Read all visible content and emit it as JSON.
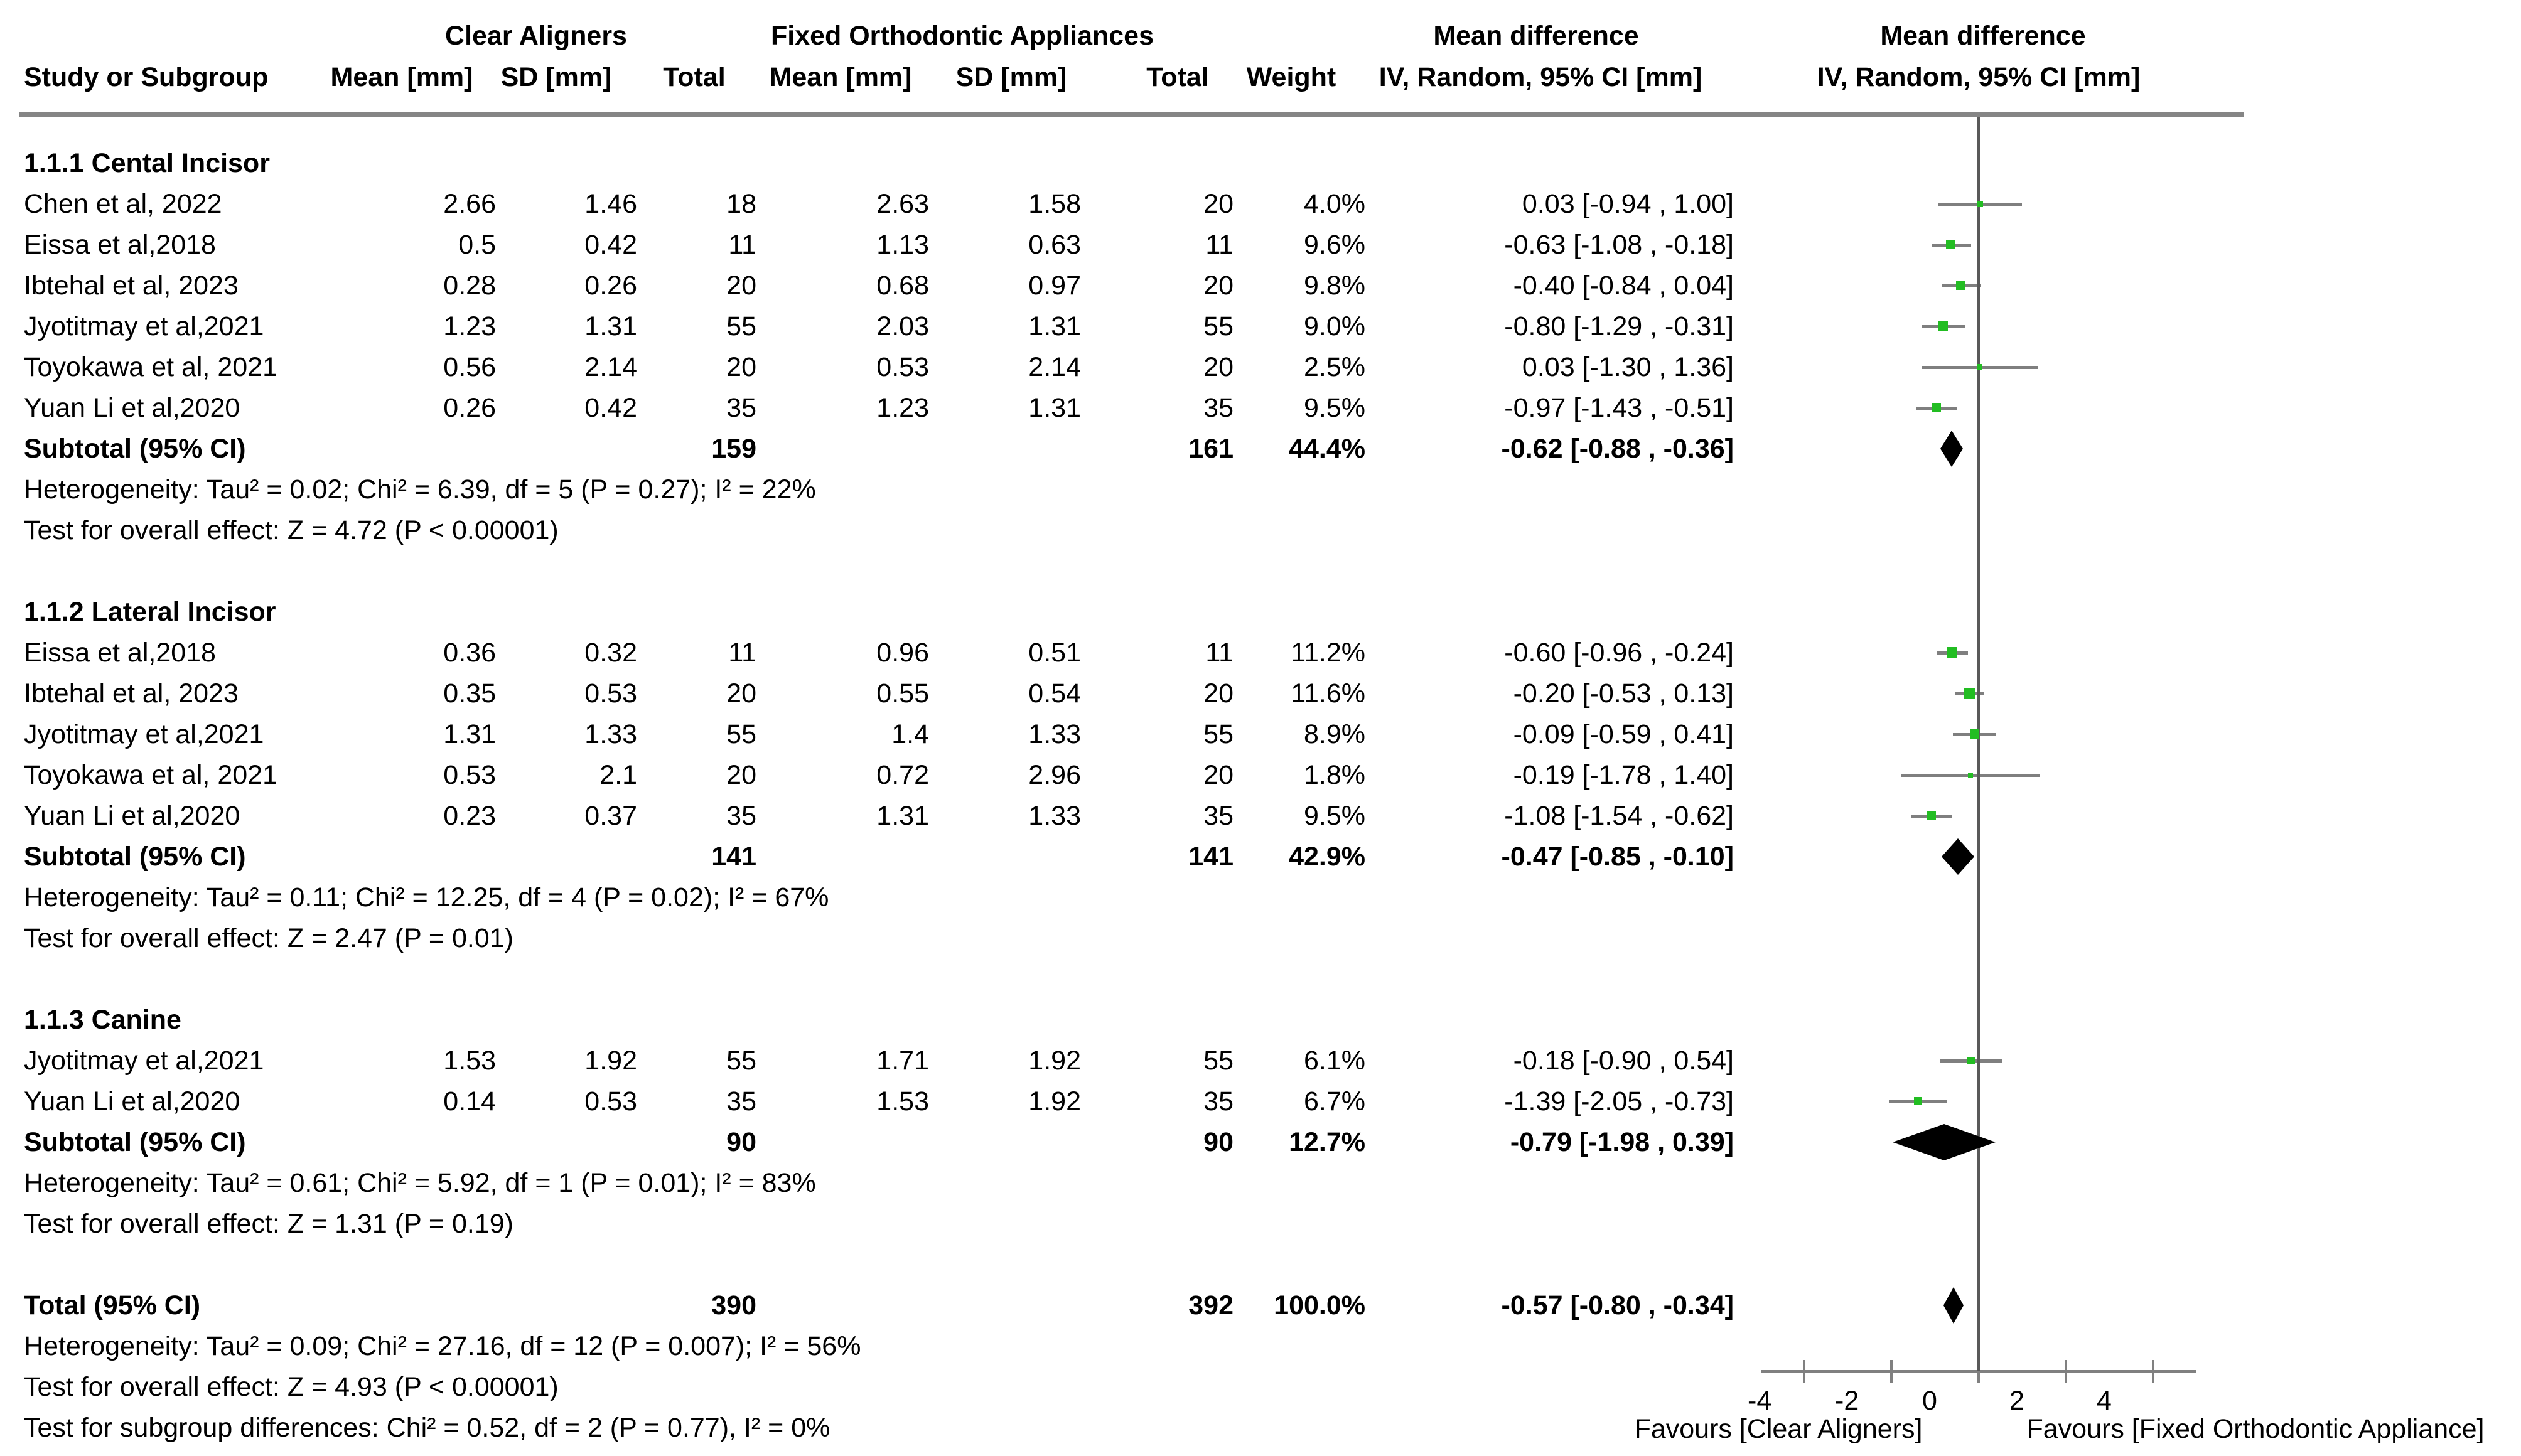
{
  "header": {
    "group1": "Clear Aligners",
    "group2": "Fixed Orthodontic Appliances",
    "col_study": "Study or Subgroup",
    "col_mean": "Mean [mm]",
    "col_sd": "SD [mm]",
    "col_total": "Total",
    "col_weight": "Weight",
    "col_md": "Mean difference",
    "col_ci": "IV, Random, 95% CI [mm]"
  },
  "axis": {
    "ticks": [
      -4,
      -2,
      0,
      2,
      4
    ],
    "range_min": -5,
    "range_max": 5,
    "favours_left": "Favours [Clear Aligners]",
    "favours_right": "Favours [Fixed Orthodontic Appliance]"
  },
  "colors": {
    "marker_green": "#22bd22",
    "ci_line_gray": "#7f7f7f",
    "axis_gray": "#808080",
    "zero_line_gray": "#595959",
    "diamond_black": "#000000"
  },
  "chart_data": {
    "type": "forest",
    "subtype": "meta-analysis mean difference, IV random effects",
    "effect_unit": "mm",
    "sections": [
      {
        "title": "1.1.1 Cental Incisor",
        "studies": [
          {
            "name": "Chen et al, 2022",
            "mean1": "2.66",
            "sd1": "1.46",
            "n1": "18",
            "mean2": "2.63",
            "sd2": "1.58",
            "n2": "20",
            "weight": "4.0%",
            "weight_pct": 4.0,
            "ci_text": "0.03 [-0.94 , 1.00]",
            "est": 0.03,
            "lo": -0.94,
            "hi": 1.0
          },
          {
            "name": "Eissa et al,2018",
            "mean1": "0.5",
            "sd1": "0.42",
            "n1": "11",
            "mean2": "1.13",
            "sd2": "0.63",
            "n2": "11",
            "weight": "9.6%",
            "weight_pct": 9.6,
            "ci_text": "-0.63 [-1.08 , -0.18]",
            "est": -0.63,
            "lo": -1.08,
            "hi": -0.18
          },
          {
            "name": "Ibtehal et al, 2023",
            "mean1": "0.28",
            "sd1": "0.26",
            "n1": "20",
            "mean2": "0.68",
            "sd2": "0.97",
            "n2": "20",
            "weight": "9.8%",
            "weight_pct": 9.8,
            "ci_text": "-0.40 [-0.84 , 0.04]",
            "est": -0.4,
            "lo": -0.84,
            "hi": 0.04
          },
          {
            "name": "Jyotitmay et al,2021",
            "mean1": "1.23",
            "sd1": "1.31",
            "n1": "55",
            "mean2": "2.03",
            "sd2": "1.31",
            "n2": "55",
            "weight": "9.0%",
            "weight_pct": 9.0,
            "ci_text": "-0.80 [-1.29 , -0.31]",
            "est": -0.8,
            "lo": -1.29,
            "hi": -0.31
          },
          {
            "name": "Toyokawa et al, 2021",
            "mean1": "0.56",
            "sd1": "2.14",
            "n1": "20",
            "mean2": "0.53",
            "sd2": "2.14",
            "n2": "20",
            "weight": "2.5%",
            "weight_pct": 2.5,
            "ci_text": "0.03 [-1.30 , 1.36]",
            "est": 0.03,
            "lo": -1.3,
            "hi": 1.36
          },
          {
            "name": "Yuan Li et al,2020",
            "mean1": "0.26",
            "sd1": "0.42",
            "n1": "35",
            "mean2": "1.23",
            "sd2": "1.31",
            "n2": "35",
            "weight": "9.5%",
            "weight_pct": 9.5,
            "ci_text": "-0.97 [-1.43 , -0.51]",
            "est": -0.97,
            "lo": -1.43,
            "hi": -0.51
          }
        ],
        "subtotal": {
          "label": "Subtotal (95% CI)",
          "n1": "159",
          "n2": "161",
          "weight": "44.4%",
          "ci_text": "-0.62 [-0.88 , -0.36]",
          "est": -0.62,
          "lo": -0.88,
          "hi": -0.36
        },
        "heterogeneity": "Heterogeneity: Tau² = 0.02; Chi² = 6.39, df = 5 (P = 0.27); I² = 22%",
        "overall_test": "Test for overall effect: Z = 4.72 (P < 0.00001)"
      },
      {
        "title": "1.1.2 Lateral Incisor",
        "studies": [
          {
            "name": "Eissa et al,2018",
            "mean1": "0.36",
            "sd1": "0.32",
            "n1": "11",
            "mean2": "0.96",
            "sd2": "0.51",
            "n2": "11",
            "weight": "11.2%",
            "weight_pct": 11.2,
            "ci_text": "-0.60 [-0.96 , -0.24]",
            "est": -0.6,
            "lo": -0.96,
            "hi": -0.24
          },
          {
            "name": "Ibtehal et al, 2023",
            "mean1": "0.35",
            "sd1": "0.53",
            "n1": "20",
            "mean2": "0.55",
            "sd2": "0.54",
            "n2": "20",
            "weight": "11.6%",
            "weight_pct": 11.6,
            "ci_text": "-0.20 [-0.53 , 0.13]",
            "est": -0.2,
            "lo": -0.53,
            "hi": 0.13
          },
          {
            "name": "Jyotitmay et al,2021",
            "mean1": "1.31",
            "sd1": "1.33",
            "n1": "55",
            "mean2": "1.4",
            "sd2": "1.33",
            "n2": "55",
            "weight": "8.9%",
            "weight_pct": 8.9,
            "ci_text": "-0.09 [-0.59 , 0.41]",
            "est": -0.09,
            "lo": -0.59,
            "hi": 0.41
          },
          {
            "name": "Toyokawa et al, 2021",
            "mean1": "0.53",
            "sd1": "2.1",
            "n1": "20",
            "mean2": "0.72",
            "sd2": "2.96",
            "n2": "20",
            "weight": "1.8%",
            "weight_pct": 1.8,
            "ci_text": "-0.19 [-1.78 , 1.40]",
            "est": -0.19,
            "lo": -1.78,
            "hi": 1.4
          },
          {
            "name": "Yuan Li et al,2020",
            "mean1": "0.23",
            "sd1": "0.37",
            "n1": "35",
            "mean2": "1.31",
            "sd2": "1.33",
            "n2": "35",
            "weight": "9.5%",
            "weight_pct": 9.5,
            "ci_text": "-1.08 [-1.54 , -0.62]",
            "est": -1.08,
            "lo": -1.54,
            "hi": -0.62
          }
        ],
        "subtotal": {
          "label": "Subtotal (95% CI)",
          "n1": "141",
          "n2": "141",
          "weight": "42.9%",
          "ci_text": "-0.47 [-0.85 , -0.10]",
          "est": -0.47,
          "lo": -0.85,
          "hi": -0.1
        },
        "heterogeneity": "Heterogeneity: Tau² = 0.11; Chi² = 12.25, df = 4 (P = 0.02); I² = 67%",
        "overall_test": "Test for overall effect: Z = 2.47 (P = 0.01)"
      },
      {
        "title": "1.1.3 Canine",
        "studies": [
          {
            "name": "Jyotitmay et al,2021",
            "mean1": "1.53",
            "sd1": "1.92",
            "n1": "55",
            "mean2": "1.71",
            "sd2": "1.92",
            "n2": "55",
            "weight": "6.1%",
            "weight_pct": 6.1,
            "ci_text": "-0.18 [-0.90 , 0.54]",
            "est": -0.18,
            "lo": -0.9,
            "hi": 0.54
          },
          {
            "name": "Yuan Li et al,2020",
            "mean1": "0.14",
            "sd1": "0.53",
            "n1": "35",
            "mean2": "1.53",
            "sd2": "1.92",
            "n2": "35",
            "weight": "6.7%",
            "weight_pct": 6.7,
            "ci_text": "-1.39 [-2.05 , -0.73]",
            "est": -1.39,
            "lo": -2.05,
            "hi": -0.73
          }
        ],
        "subtotal": {
          "label": "Subtotal (95% CI)",
          "n1": "90",
          "n2": "90",
          "weight": "12.7%",
          "ci_text": "-0.79 [-1.98 , 0.39]",
          "est": -0.79,
          "lo": -1.98,
          "hi": 0.39
        },
        "heterogeneity": "Heterogeneity: Tau² = 0.61; Chi² = 5.92, df = 1 (P = 0.01); I² = 83%",
        "overall_test": "Test for overall effect: Z = 1.31 (P = 0.19)"
      }
    ],
    "total": {
      "label": "Total (95% CI)",
      "n1": "390",
      "n2": "392",
      "weight": "100.0%",
      "ci_text": "-0.57 [-0.80 , -0.34]",
      "est": -0.57,
      "lo": -0.8,
      "hi": -0.34
    },
    "total_heterogeneity": "Heterogeneity: Tau² = 0.09; Chi² = 27.16, df = 12 (P = 0.007); I² = 56%",
    "total_overall_test": "Test for overall effect: Z = 4.93 (P < 0.00001)",
    "subgroup_test": "Test for subgroup differences: Chi² = 0.52, df = 2 (P = 0.77), I² = 0%"
  }
}
